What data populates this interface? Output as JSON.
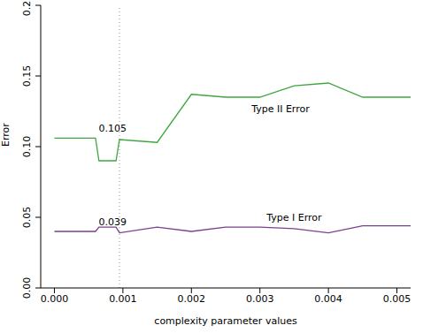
{
  "chart_data": {
    "type": "line",
    "x_label": "complexity parameter values",
    "y_label": "Error",
    "x": [
      0,
      0.0006,
      0.00065,
      0.0009,
      0.00095,
      0.0015,
      0.002,
      0.0025,
      0.003,
      0.0035,
      0.004,
      0.0045,
      0.0052
    ],
    "series": [
      {
        "name": "Type II Error",
        "color": "#3fa63f",
        "values": [
          0.106,
          0.106,
          0.09,
          0.09,
          0.105,
          0.103,
          0.137,
          0.135,
          0.135,
          0.143,
          0.145,
          0.135,
          0.135
        ],
        "label_x": 0.0033,
        "label_y": 0.127
      },
      {
        "name": "Type I Error",
        "color": "#7b3f8f",
        "values": [
          0.04,
          0.04,
          0.043,
          0.043,
          0.039,
          0.043,
          0.04,
          0.043,
          0.043,
          0.042,
          0.039,
          0.044,
          0.044
        ],
        "label_x": 0.0035,
        "label_y": 0.05
      }
    ],
    "annotations": [
      {
        "text": "0.105",
        "x": 0.00085,
        "y": 0.113
      },
      {
        "text": "0.039",
        "x": 0.00085,
        "y": 0.047
      }
    ],
    "reference_x": 0.00095,
    "xlim": [
      -0.0002,
      0.0052
    ],
    "xticks": [
      {
        "value": 0,
        "label": "0.000"
      },
      {
        "value": 0.001,
        "label": "0.001"
      },
      {
        "value": 0.002,
        "label": "0.002"
      },
      {
        "value": 0.003,
        "label": "0.003"
      },
      {
        "value": 0.004,
        "label": "0.004"
      },
      {
        "value": 0.005,
        "label": "0.005"
      }
    ],
    "ylim": [
      0,
      0.2
    ],
    "yticks": [
      {
        "value": 0,
        "label": "0.00"
      },
      {
        "value": 0.05,
        "label": "0.05"
      },
      {
        "value": 0.1,
        "label": "0.10"
      },
      {
        "value": 0.15,
        "label": "0.15"
      },
      {
        "value": 0.2,
        "label": "0.20"
      }
    ],
    "grid": false
  }
}
